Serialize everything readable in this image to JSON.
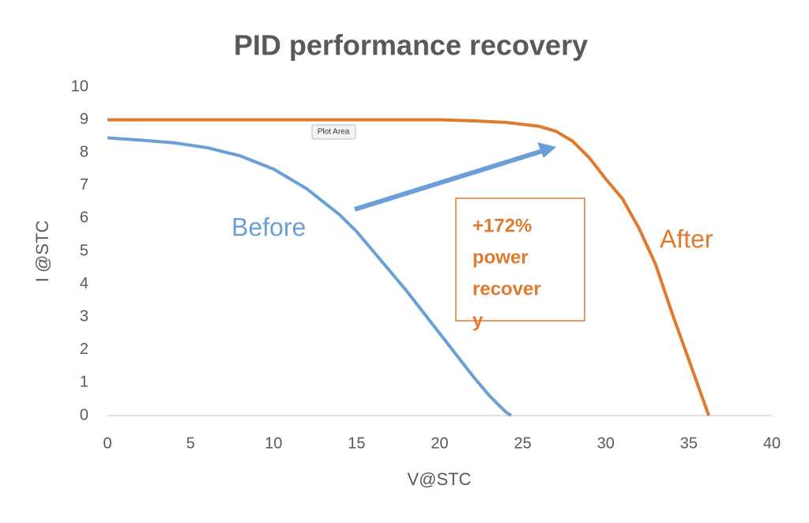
{
  "chart_data": {
    "type": "line",
    "title": "PID performance recovery",
    "x_label": "V@STC",
    "y_label": "I @STC",
    "xlim": [
      0,
      40
    ],
    "xticks": [
      0,
      5,
      10,
      15,
      20,
      25,
      30,
      35,
      40
    ],
    "ylim": [
      0,
      10
    ],
    "yticks": [
      0,
      1,
      2,
      3,
      4,
      5,
      6,
      7,
      8,
      9,
      10
    ],
    "series": [
      {
        "name": "Before",
        "color": "#6a9fd8",
        "x": [
          0,
          2,
          4,
          6,
          8,
          10,
          12,
          14,
          15,
          16,
          18,
          20,
          22,
          23,
          24,
          24.3
        ],
        "values": [
          8.45,
          8.38,
          8.3,
          8.15,
          7.9,
          7.5,
          6.9,
          6.1,
          5.6,
          5.0,
          3.8,
          2.5,
          1.2,
          0.6,
          0.1,
          0
        ]
      },
      {
        "name": "After",
        "color": "#e07b2e",
        "x": [
          0,
          10,
          20,
          22,
          24,
          26,
          27,
          28,
          29,
          30,
          31,
          32,
          33,
          34,
          35,
          36.2
        ],
        "values": [
          9,
          9,
          9,
          8.97,
          8.92,
          8.8,
          8.65,
          8.35,
          7.85,
          7.2,
          6.6,
          5.7,
          4.6,
          3.1,
          1.7,
          0
        ]
      }
    ],
    "annotation": [
      "+172%",
      "power",
      "recover",
      "y"
    ],
    "tooltip": "Plot Area"
  }
}
